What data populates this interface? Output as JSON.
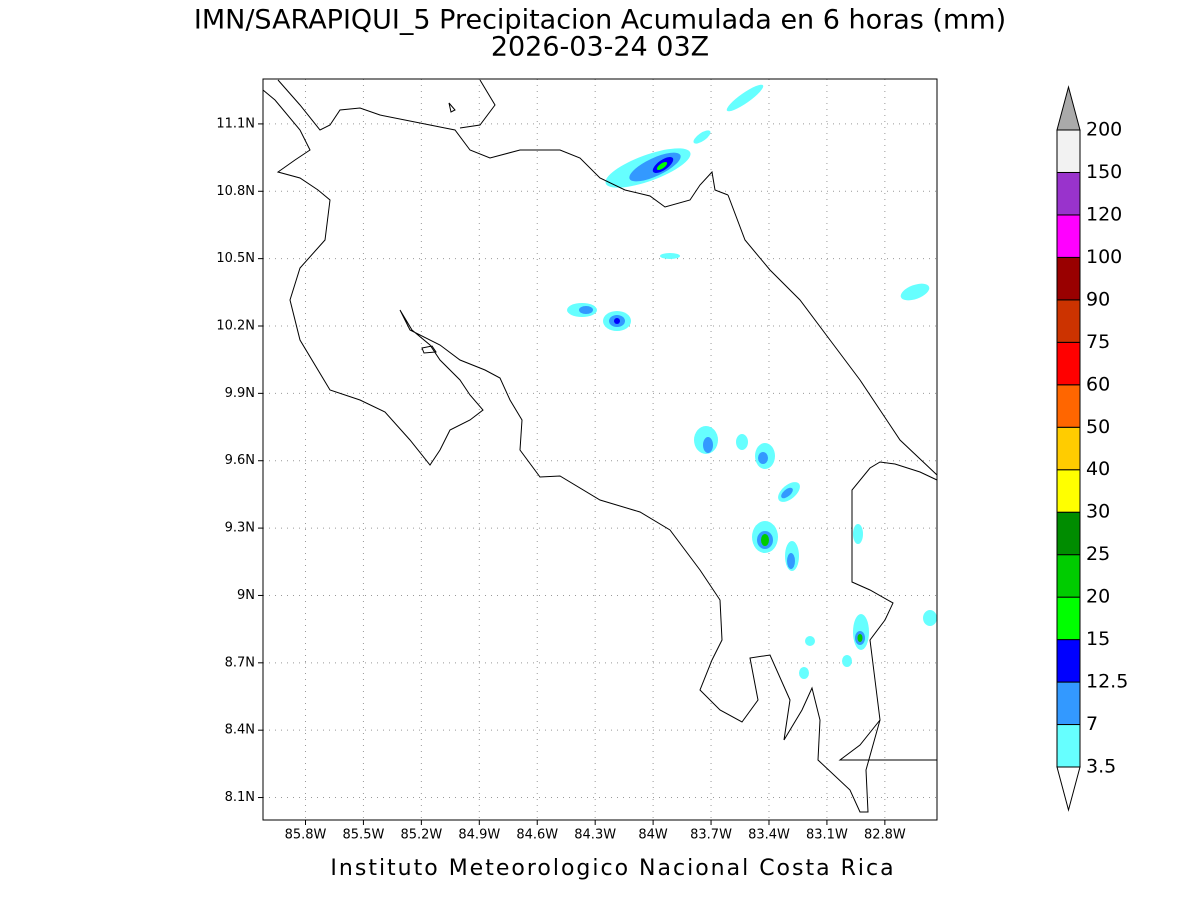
{
  "title": "IMN/SARAPIQUI_5 Precipitacion Acumulada en 6 horas (mm)",
  "subtitle": "2026-03-24 03Z",
  "footer": "Instituto Meteorologico Nacional Costa Rica",
  "map": {
    "xlim": [
      -86.02,
      -82.53
    ],
    "ylim": [
      8.0,
      11.3
    ],
    "xticks": [
      {
        "value": -85.8,
        "label": "85.8W"
      },
      {
        "value": -85.5,
        "label": "85.5W"
      },
      {
        "value": -85.2,
        "label": "85.2W"
      },
      {
        "value": -84.9,
        "label": "84.9W"
      },
      {
        "value": -84.6,
        "label": "84.6W"
      },
      {
        "value": -84.3,
        "label": "84.3W"
      },
      {
        "value": -84.0,
        "label": "84W"
      },
      {
        "value": -83.7,
        "label": "83.7W"
      },
      {
        "value": -83.4,
        "label": "83.4W"
      },
      {
        "value": -83.1,
        "label": "83.1W"
      },
      {
        "value": -82.8,
        "label": "82.8W"
      }
    ],
    "yticks": [
      {
        "value": 8.1,
        "label": "8.1N"
      },
      {
        "value": 8.4,
        "label": "8.4N"
      },
      {
        "value": 8.7,
        "label": "8.7N"
      },
      {
        "value": 9.0,
        "label": "9N"
      },
      {
        "value": 9.3,
        "label": "9.3N"
      },
      {
        "value": 9.6,
        "label": "9.6N"
      },
      {
        "value": 9.9,
        "label": "9.9N"
      },
      {
        "value": 10.2,
        "label": "10.2N"
      },
      {
        "value": 10.5,
        "label": "10.5N"
      },
      {
        "value": 10.8,
        "label": "10.8N"
      },
      {
        "value": 11.1,
        "label": "11.1N"
      }
    ],
    "grid": true
  },
  "colorbar": {
    "levels": [
      3.5,
      7,
      12.5,
      15,
      20,
      25,
      30,
      40,
      50,
      60,
      75,
      90,
      100,
      120,
      150,
      200
    ],
    "colors": [
      "#ffffff",
      "#66ffff",
      "#3399ff",
      "#0000ff",
      "#00ff00",
      "#00cc00",
      "#008c00",
      "#ffff00",
      "#ffcc00",
      "#ff6600",
      "#ff0000",
      "#cc3300",
      "#990000",
      "#ff00ff",
      "#9933cc",
      "#f2f2f2",
      "#aaaaaa"
    ]
  }
}
